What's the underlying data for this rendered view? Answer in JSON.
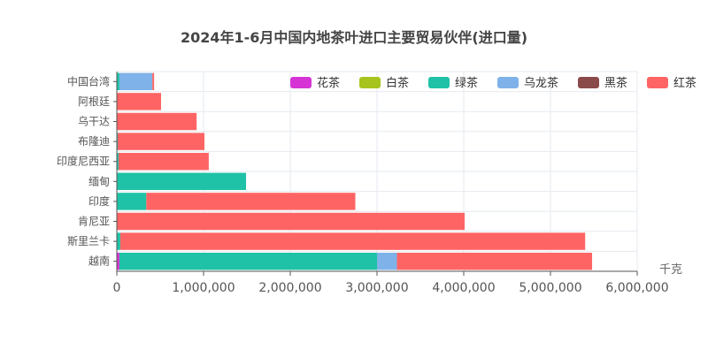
{
  "chart_data": {
    "type": "bar",
    "orientation": "horizontal",
    "stacked": true,
    "title": "2024年1-6月中国内地茶叶进口主要贸易伙伴(进口量)",
    "xlabel": "千克",
    "xlim": [
      0,
      6000000
    ],
    "xticks": [
      0,
      1000000,
      2000000,
      3000000,
      4000000,
      5000000,
      6000000
    ],
    "xtick_labels": [
      "0",
      "1,000,000",
      "2,000,000",
      "3,000,000",
      "4,000,000",
      "5,000,000",
      "6,000,000"
    ],
    "categories": [
      "越南",
      "斯里兰卡",
      "肯尼亚",
      "印度",
      "缅甸",
      "印度尼西亚",
      "布隆迪",
      "乌干达",
      "阿根廷",
      "中国台湾"
    ],
    "series": [
      {
        "name": "花茶",
        "color": "#d633d6",
        "values": [
          30000,
          0,
          0,
          0,
          0,
          0,
          0,
          0,
          0,
          0
        ]
      },
      {
        "name": "白茶",
        "color": "#a6c41d",
        "values": [
          0,
          0,
          0,
          0,
          0,
          0,
          0,
          0,
          0,
          0
        ]
      },
      {
        "name": "绿茶",
        "color": "#1fc2a6",
        "values": [
          2970000,
          40000,
          0,
          340000,
          1490000,
          20000,
          10000,
          0,
          0,
          30000
        ]
      },
      {
        "name": "乌龙茶",
        "color": "#7eb2e8",
        "values": [
          230000,
          0,
          0,
          0,
          0,
          0,
          0,
          0,
          0,
          380000
        ]
      },
      {
        "name": "黑茶",
        "color": "#8b4a4a",
        "values": [
          0,
          0,
          0,
          0,
          0,
          0,
          0,
          0,
          0,
          0
        ]
      },
      {
        "name": "红茶",
        "color": "#ff6464",
        "values": [
          2250000,
          5360000,
          4010000,
          2410000,
          0,
          1040000,
          1000000,
          920000,
          510000,
          20000
        ]
      }
    ],
    "legend_position": "top-right",
    "grid": true
  }
}
